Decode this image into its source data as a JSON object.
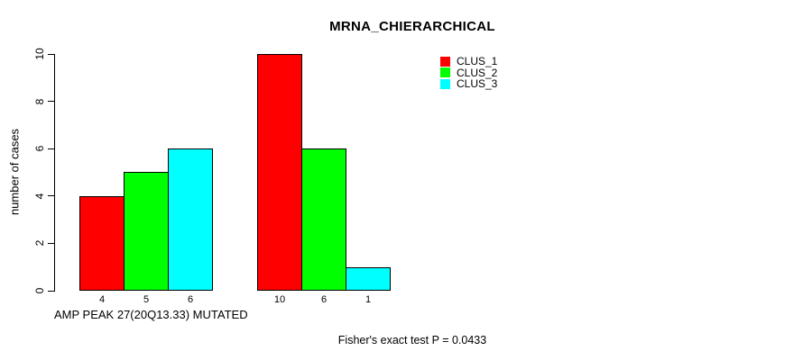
{
  "chart_data": {
    "type": "bar",
    "title": "MRNA_CHIERARCHICAL",
    "ylabel": "number of cases",
    "xlabel": "AMP PEAK 27(20Q13.33) MUTATED",
    "annotation": "Fisher's exact test P = 0.0433",
    "ylim": [
      0,
      10
    ],
    "yticks": [
      0,
      2,
      4,
      6,
      8,
      10
    ],
    "grid": false,
    "legend_position": "top-right",
    "legend": [
      {
        "label": "CLUS_1",
        "color": "#ff0000"
      },
      {
        "label": "CLUS_2",
        "color": "#00ff00"
      },
      {
        "label": "CLUS_3",
        "color": "#00ffff"
      }
    ],
    "bar_border_color": "#000000",
    "categories_note": "two bar groups; x tick label under each bar equals its count",
    "groups": [
      {
        "bars": [
          {
            "series": "CLUS_1",
            "tick_label": "4",
            "value": 4,
            "color": "#ff0000"
          },
          {
            "series": "CLUS_2",
            "tick_label": "5",
            "value": 5,
            "color": "#00ff00"
          },
          {
            "series": "CLUS_3",
            "tick_label": "6",
            "value": 6,
            "color": "#00ffff"
          }
        ]
      },
      {
        "bars": [
          {
            "series": "CLUS_1",
            "tick_label": "10",
            "value": 10,
            "color": "#ff0000"
          },
          {
            "series": "CLUS_2",
            "tick_label": "6",
            "value": 6,
            "color": "#00ff00"
          },
          {
            "series": "CLUS_3",
            "tick_label": "1",
            "value": 1,
            "color": "#00ffff"
          }
        ]
      }
    ]
  }
}
